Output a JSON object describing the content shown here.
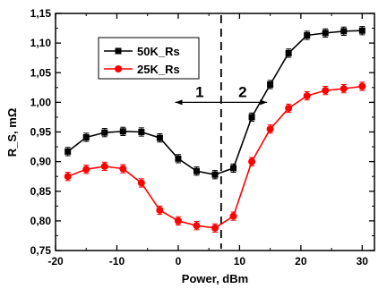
{
  "chart_data": {
    "type": "line",
    "xlabel": "Power, dBm",
    "ylabel": "R_S, mΩ",
    "xlim": [
      -20,
      32
    ],
    "ylim": [
      0.75,
      1.15
    ],
    "x_ticks": [
      "-20",
      "-10",
      "0",
      "10",
      "20",
      "30"
    ],
    "y_ticks": [
      "0,75",
      "0,80",
      "0,85",
      "0,90",
      "0,95",
      "1,00",
      "1,05",
      "1,10",
      "1,15"
    ],
    "legend_position": "upper-left",
    "divider_x": 7,
    "region_labels": [
      "1",
      "2"
    ],
    "series": [
      {
        "name": "50K_Rs",
        "color": "#000000",
        "marker": "square",
        "x": [
          -18,
          -15,
          -12,
          -9,
          -6,
          -3,
          0,
          3,
          6,
          9,
          12,
          15,
          18,
          21,
          24,
          27,
          30
        ],
        "y": [
          0.917,
          0.941,
          0.949,
          0.951,
          0.95,
          0.94,
          0.905,
          0.884,
          0.878,
          0.889,
          0.975,
          1.03,
          1.083,
          1.113,
          1.117,
          1.12,
          1.121
        ],
        "err": [
          0.007,
          0.007,
          0.007,
          0.007,
          0.007,
          0.007,
          0.007,
          0.007,
          0.007,
          0.007,
          0.007,
          0.007,
          0.007,
          0.007,
          0.007,
          0.007,
          0.007
        ]
      },
      {
        "name": "25K_Rs",
        "color": "#ff0000",
        "marker": "circle",
        "x": [
          -18,
          -15,
          -12,
          -9,
          -6,
          -3,
          0,
          3,
          6,
          9,
          12,
          15,
          18,
          21,
          24,
          27,
          30
        ],
        "y": [
          0.875,
          0.887,
          0.892,
          0.888,
          0.864,
          0.818,
          0.8,
          0.792,
          0.788,
          0.808,
          0.9,
          0.955,
          0.99,
          1.011,
          1.02,
          1.023,
          1.027
        ],
        "err": [
          0.007,
          0.007,
          0.007,
          0.007,
          0.007,
          0.007,
          0.007,
          0.007,
          0.007,
          0.007,
          0.007,
          0.007,
          0.007,
          0.007,
          0.007,
          0.007,
          0.007
        ]
      }
    ]
  }
}
